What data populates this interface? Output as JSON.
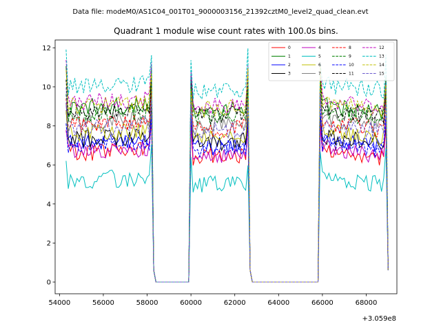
{
  "figure": {
    "suptitle": "Data file: modeM0/AS1C04_001T01_9000003156_21392cztM0_level2_quad_clean.evt"
  },
  "chart_data": {
    "type": "line",
    "title": "Quadrant 1 module wise count rates with 100.0s bins.",
    "xlabel": "",
    "ylabel": "",
    "x_offset_label": "+3.059e8",
    "xlim": [
      53800,
      69400
    ],
    "ylim": [
      -0.6,
      12.4
    ],
    "x_ticks": [
      54000,
      56000,
      58000,
      60000,
      62000,
      64000,
      66000,
      68000
    ],
    "x_tick_labels": [
      "54000",
      "56000",
      "58000",
      "60000",
      "62000",
      "64000",
      "66000",
      "68000"
    ],
    "y_ticks": [
      0,
      2,
      4,
      6,
      8,
      10,
      12
    ],
    "y_tick_labels": [
      "0",
      "2",
      "4",
      "6",
      "8",
      "10",
      "12"
    ],
    "grid": false,
    "legend_position": "upper right",
    "legend_columns": 4,
    "segments": [
      {
        "start": 54300,
        "end": 58300
      },
      {
        "start": 60000,
        "end": 62700
      },
      {
        "start": 65900,
        "end": 69000
      }
    ],
    "gaps": [
      {
        "start": 58300,
        "end": 60000
      },
      {
        "start": 62700,
        "end": 65900
      }
    ],
    "series": [
      {
        "name": "0",
        "level": 6.6,
        "color": "#ff0000",
        "dash": "solid"
      },
      {
        "name": "1",
        "level": 8.9,
        "color": "#008000",
        "dash": "solid"
      },
      {
        "name": "2",
        "level": 7.1,
        "color": "#0000ff",
        "dash": "solid"
      },
      {
        "name": "3",
        "level": 7.3,
        "color": "#000000",
        "dash": "solid"
      },
      {
        "name": "4",
        "level": 6.7,
        "color": "#bf00bf",
        "dash": "solid"
      },
      {
        "name": "5",
        "level": 5.2,
        "color": "#00bfbf",
        "dash": "solid"
      },
      {
        "name": "6",
        "level": 7.6,
        "color": "#bfbf00",
        "dash": "solid"
      },
      {
        "name": "7",
        "level": 8.2,
        "color": "#808080",
        "dash": "solid"
      },
      {
        "name": "8",
        "level": 8.0,
        "color": "#ff0000",
        "dash": "dashed"
      },
      {
        "name": "9",
        "level": 8.6,
        "color": "#008000",
        "dash": "dashed"
      },
      {
        "name": "10",
        "level": 7.0,
        "color": "#0000ff",
        "dash": "dashed"
      },
      {
        "name": "11",
        "level": 8.7,
        "color": "#000000",
        "dash": "dashed"
      },
      {
        "name": "12",
        "level": 9.2,
        "color": "#bf00bf",
        "dash": "dashed"
      },
      {
        "name": "13",
        "level": 10.0,
        "color": "#00bfbf",
        "dash": "dashed"
      },
      {
        "name": "14",
        "level": 9.0,
        "color": "#bfbf00",
        "dash": "dashed"
      },
      {
        "name": "15",
        "level": 7.9,
        "color": "#6a5acd",
        "dash": "dashed"
      }
    ]
  }
}
